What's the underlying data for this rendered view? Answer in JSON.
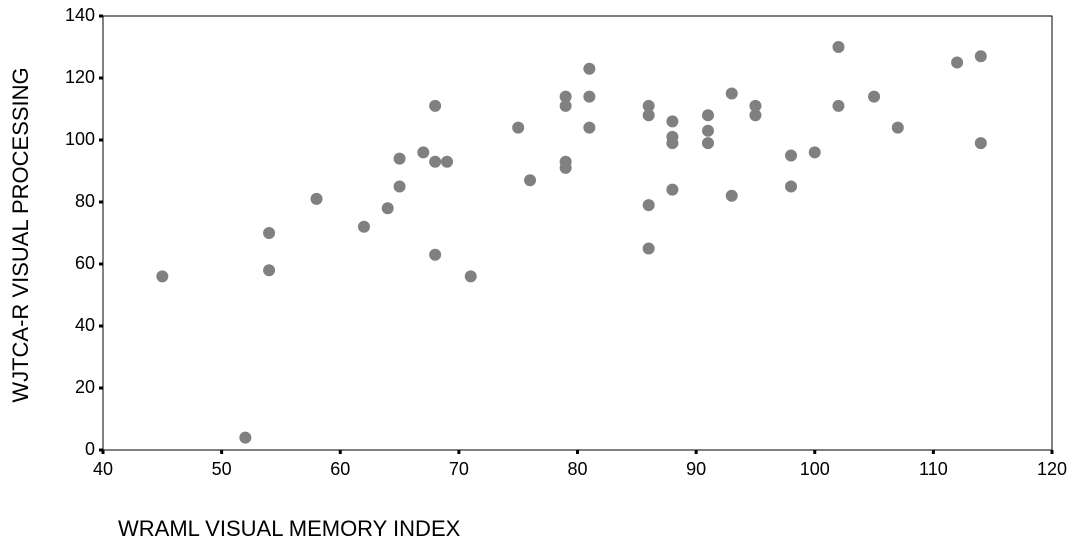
{
  "chart_data": {
    "type": "scatter",
    "x_label": "WRAML VISUAL MEMORY INDEX",
    "y_label": "WJTCA-R VISUAL PROCESSING",
    "color": "#808080",
    "xlim": [
      40,
      120
    ],
    "xticks": [
      40,
      50,
      60,
      70,
      80,
      90,
      100,
      110,
      120
    ],
    "ylim": [
      0,
      140
    ],
    "yticks": [
      0,
      20,
      40,
      60,
      80,
      100,
      120,
      140
    ],
    "x": [
      45,
      52,
      54,
      54,
      58,
      62,
      64,
      65,
      65,
      67,
      68,
      68,
      68,
      69,
      71,
      75,
      76,
      79,
      79,
      79,
      79,
      81,
      81,
      81,
      86,
      86,
      86,
      86,
      88,
      88,
      88,
      88,
      91,
      91,
      91,
      93,
      93,
      95,
      95,
      98,
      98,
      100,
      102,
      102,
      105,
      107,
      112,
      114,
      114
    ],
    "y": [
      56,
      4,
      70,
      58,
      81,
      72,
      78,
      94,
      85,
      96,
      93,
      111,
      63,
      93,
      56,
      104,
      87,
      114,
      111,
      93,
      91,
      123,
      114,
      104,
      111,
      108,
      79,
      65,
      106,
      101,
      99,
      84,
      108,
      103,
      99,
      115,
      82,
      111,
      108,
      95,
      85,
      96,
      130,
      111,
      114,
      104,
      125,
      127,
      99
    ]
  }
}
